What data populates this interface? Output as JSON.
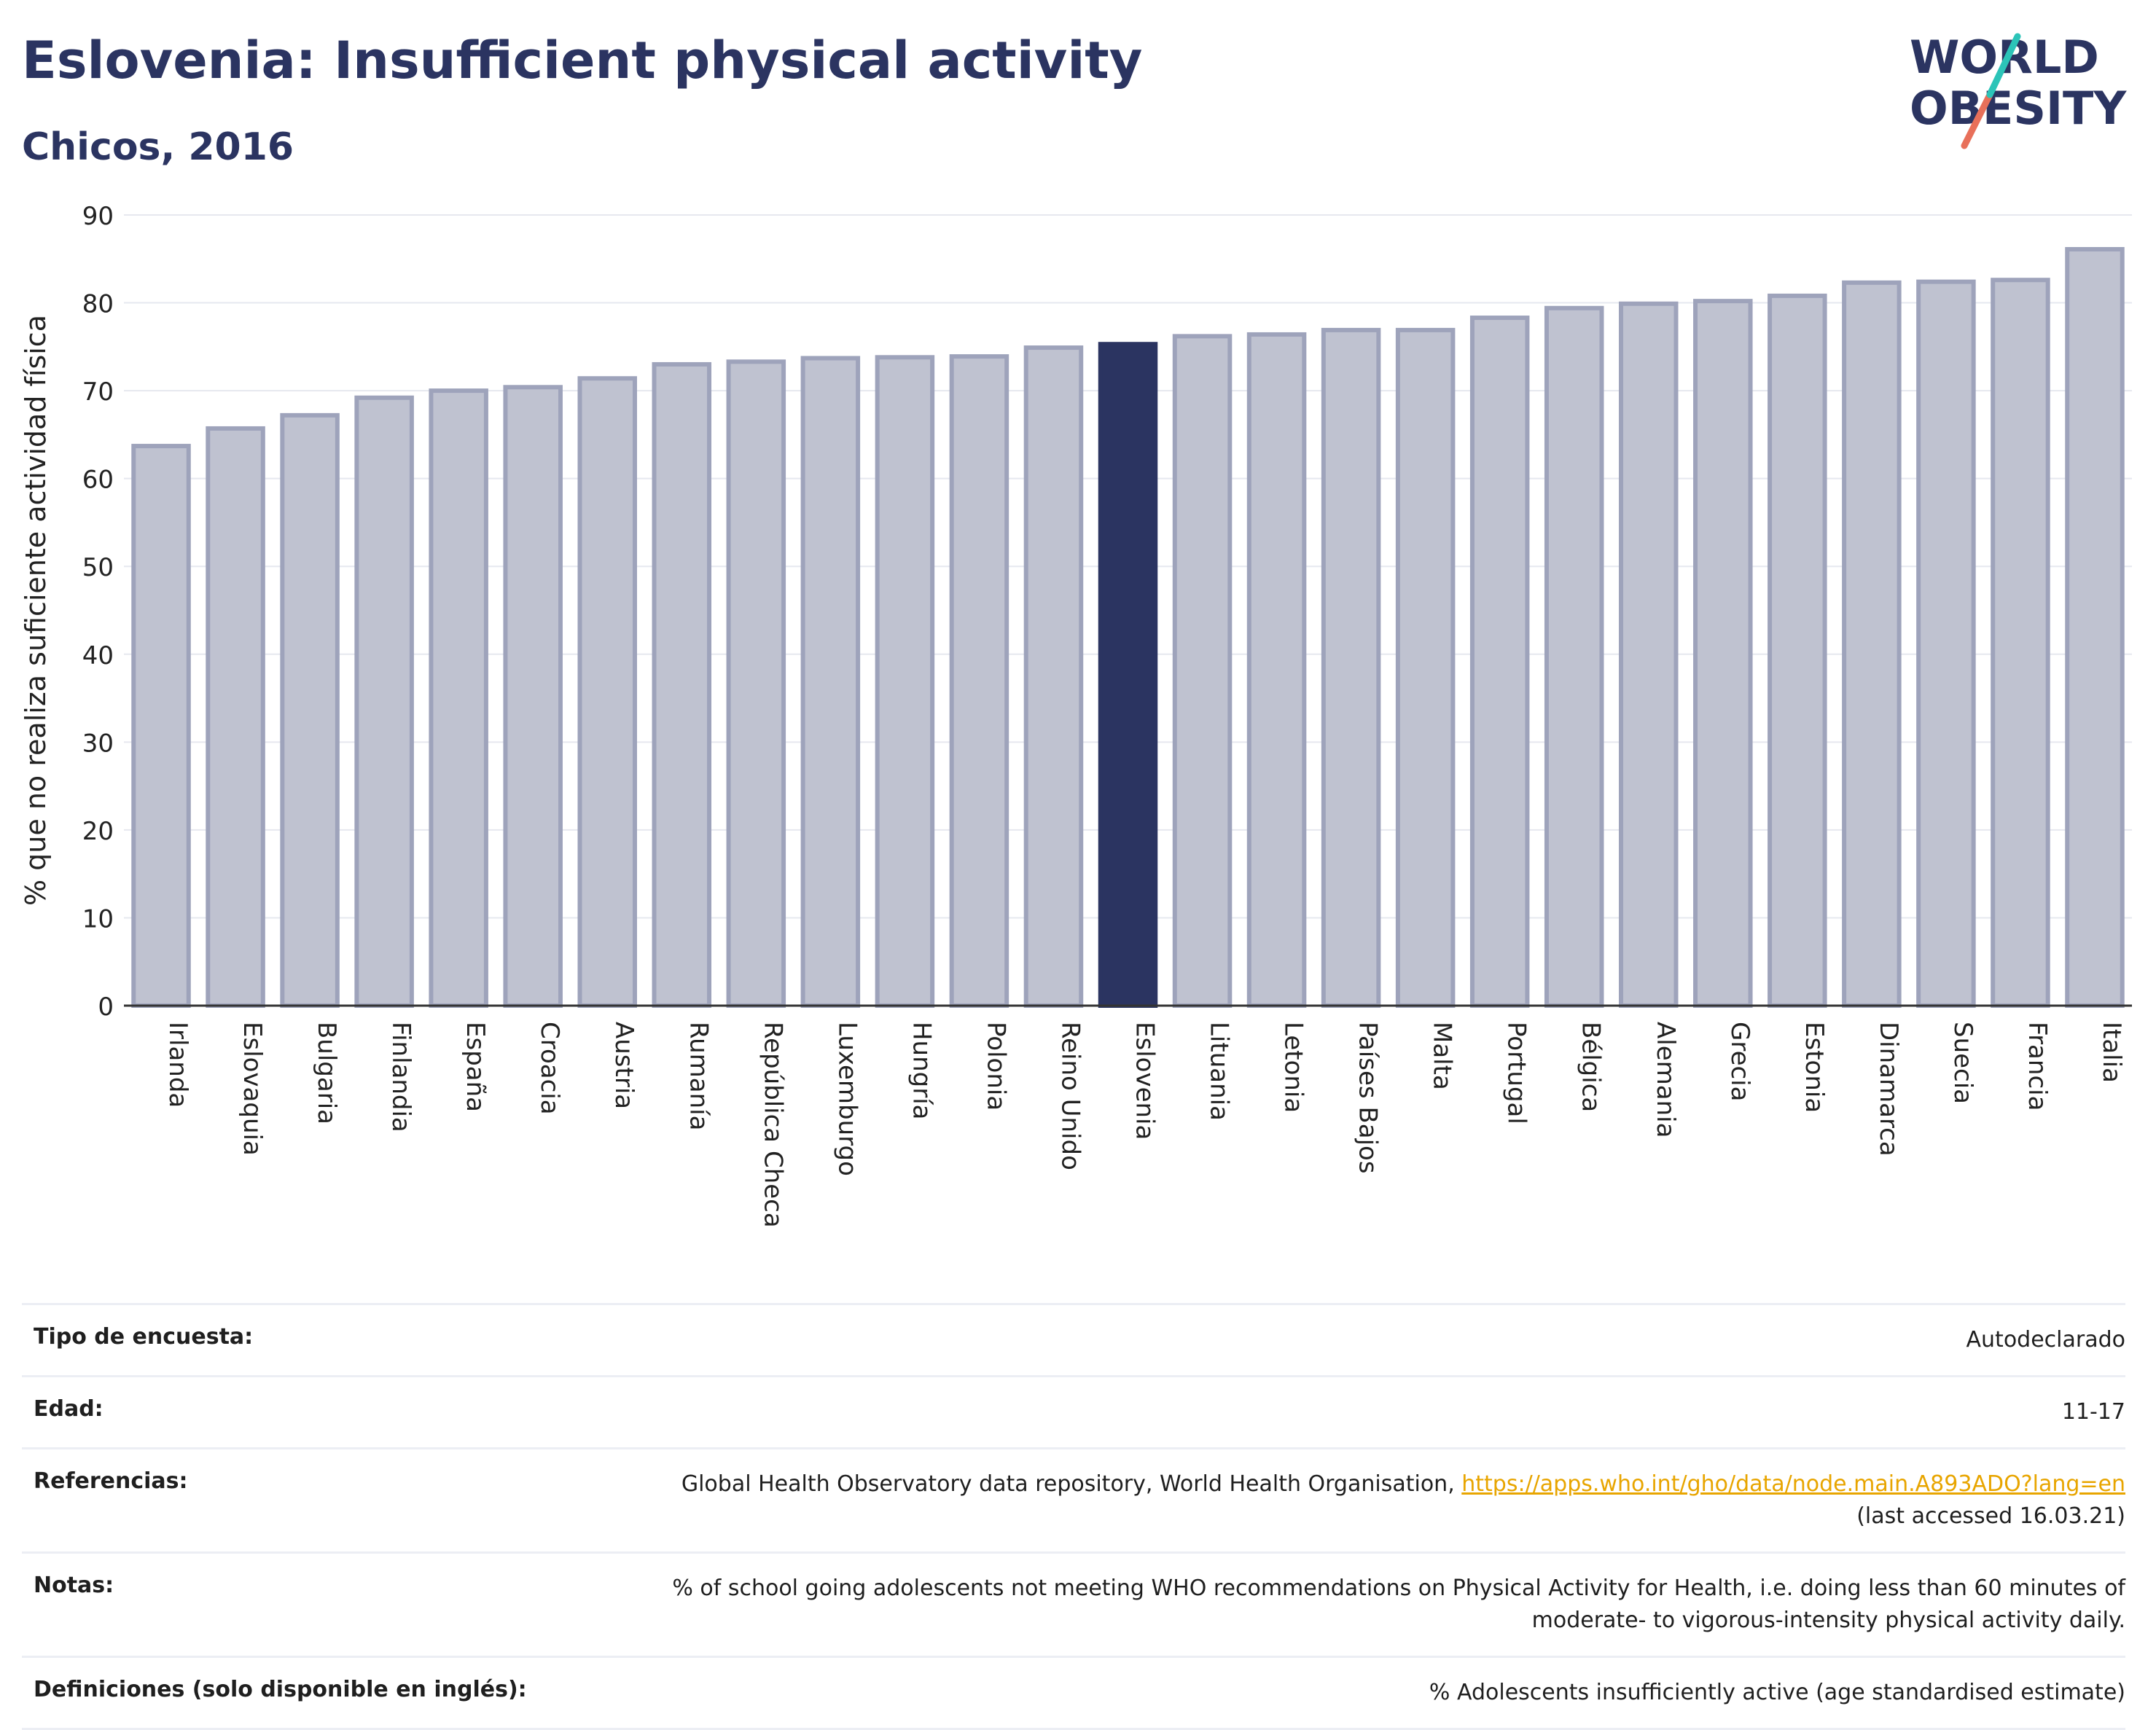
{
  "header": {
    "title": "Eslovenia: Insufficient physical activity",
    "subtitle": "Chicos, 2016"
  },
  "logo": {
    "line1": "WORLD",
    "line2": "OBESITY",
    "accent_colors": [
      "#2cc4b8",
      "#e8705a"
    ]
  },
  "colors": {
    "highlight": "#2b3461",
    "bar": "#bfc2d0",
    "bar_edge": "#9ea3bb",
    "brand_text": "#2b3461"
  },
  "chart_data": {
    "type": "bar",
    "title": "Eslovenia: Insufficient physical activity",
    "subtitle": "Chicos, 2016",
    "xlabel": "",
    "ylabel": "% que no realiza suficiente actividad física",
    "ylim": [
      0,
      90
    ],
    "yticks": [
      0,
      10,
      20,
      30,
      40,
      50,
      60,
      70,
      80,
      90
    ],
    "grid": true,
    "highlight": "Eslovenia",
    "categories": [
      "Irlanda",
      "Eslovaquia",
      "Bulgaria",
      "Finlandia",
      "España",
      "Croacia",
      "Austria",
      "Rumanía",
      "República Checa",
      "Luxemburgo",
      "Hungría",
      "Polonia",
      "Reino Unido",
      "Eslovenia",
      "Lituania",
      "Letonia",
      "Países Bajos",
      "Malta",
      "Portugal",
      "Bélgica",
      "Alemania",
      "Grecia",
      "Estonia",
      "Dinamarca",
      "Suecia",
      "Francia",
      "Italia"
    ],
    "values": [
      63.7,
      65.7,
      67.2,
      69.2,
      70.0,
      70.4,
      71.4,
      73.0,
      73.3,
      73.7,
      73.8,
      73.9,
      74.9,
      75.3,
      76.2,
      76.4,
      76.9,
      76.9,
      78.3,
      79.4,
      79.9,
      80.2,
      80.8,
      82.3,
      82.4,
      82.6,
      86.1
    ]
  },
  "info": {
    "survey_type_label": "Tipo de encuesta:",
    "survey_type_value": "Autodeclarado",
    "age_label": "Edad:",
    "age_value": "11-17",
    "references_label": "Referencias:",
    "references_text": "Global Health Observatory data repository, World Health Organisation, ",
    "references_link": "https://apps.who.int/gho/data/node.main.A893ADO?lang=en",
    "references_accessed": "(last accessed 16.03.21)",
    "notes_label": "Notas:",
    "notes_line1": "% of school going adolescents not meeting WHO recommendations on Physical Activity for Health, i.e. doing less than 60 minutes of",
    "notes_line2": "moderate- to vigorous-intensity physical activity daily.",
    "definitions_label": "Definiciones (solo disponible en inglés):",
    "definitions_value": "% Adolescents insufficiently active (age standardised estimate)"
  }
}
